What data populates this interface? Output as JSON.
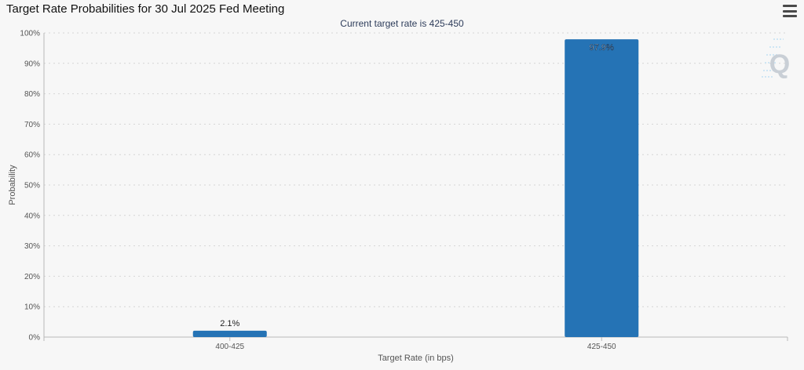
{
  "header": {
    "title": "Target Rate Probabilities for 30 Jul 2025 Fed Meeting",
    "menu_icon": "hamburger-menu-icon",
    "watermark_icon": "q-logo-icon",
    "watermark_letter": "Q"
  },
  "colors": {
    "bar": "#2573b5",
    "background": "#f7f7f7",
    "grid": "#d6d6d6"
  },
  "chart_data": {
    "type": "bar",
    "title": "Target Rate Probabilities for 30 Jul 2025 Fed Meeting",
    "subtitle": "Current target rate is 425-450",
    "categories": [
      "400-425",
      "425-450"
    ],
    "values": [
      2.1,
      97.9
    ],
    "data_labels": [
      "2.1%",
      "97.9%"
    ],
    "xlabel": "Target Rate (in bps)",
    "ylabel": "Probability",
    "ylim": [
      0,
      100
    ],
    "yticks": [
      "0%",
      "10%",
      "20%",
      "30%",
      "40%",
      "50%",
      "60%",
      "70%",
      "80%",
      "90%",
      "100%"
    ],
    "grid": true,
    "legend": "none"
  }
}
